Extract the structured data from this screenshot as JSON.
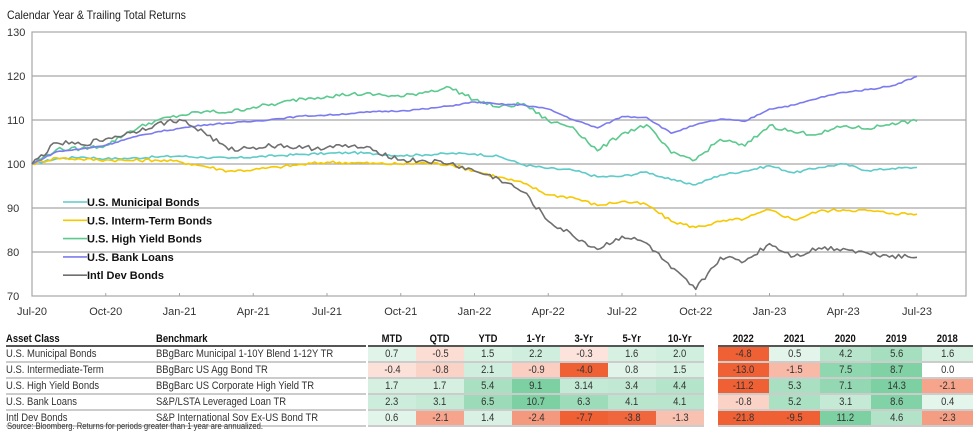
{
  "title": "Calendar Year & Trailing Total Returns",
  "chart_data": {
    "type": "line",
    "title": "Calendar Year & Trailing Total Returns",
    "xlabel": "",
    "ylabel": "",
    "ylim": [
      70,
      130
    ],
    "yticks": [
      70,
      80,
      90,
      100,
      110,
      120,
      130
    ],
    "grid": true,
    "legend_position": "left-lower",
    "x_ticks": [
      "Jul-20",
      "Oct-20",
      "Jan-21",
      "Apr-21",
      "Jul-21",
      "Oct-21",
      "Jan-22",
      "Apr-22",
      "Jul-22",
      "Oct-22",
      "Jan-23",
      "Apr-23",
      "Jul-23"
    ],
    "x": [
      "Jul-20",
      "Aug-20",
      "Sep-20",
      "Oct-20",
      "Nov-20",
      "Dec-20",
      "Jan-21",
      "Feb-21",
      "Mar-21",
      "Apr-21",
      "May-21",
      "Jun-21",
      "Jul-21",
      "Aug-21",
      "Sep-21",
      "Oct-21",
      "Nov-21",
      "Dec-21",
      "Jan-22",
      "Feb-22",
      "Mar-22",
      "Apr-22",
      "May-22",
      "Jun-22",
      "Jul-22",
      "Aug-22",
      "Sep-22",
      "Oct-22",
      "Nov-22",
      "Dec-22",
      "Jan-23",
      "Feb-23",
      "Mar-23",
      "Apr-23",
      "May-23",
      "Jun-23",
      "Jul-23"
    ],
    "series": [
      {
        "name": "U.S.  Municipal Bonds",
        "color": "#5ecbc8",
        "values": [
          100,
          101.2,
          101.6,
          101.2,
          101.3,
          101.6,
          101.8,
          101.5,
          101.3,
          101.6,
          101.9,
          102.2,
          102.4,
          102.6,
          102.3,
          101.9,
          102.1,
          102.4,
          102.3,
          101.7,
          99.8,
          99.0,
          98.6,
          97.1,
          97.2,
          98.2,
          96.4,
          95.3,
          97.5,
          98.4,
          99.6,
          98.0,
          99.2,
          100.0,
          98.5,
          99.0,
          99.2
        ]
      },
      {
        "name": "U.S. Interm-Term Bonds",
        "color": "#f5c800",
        "values": [
          100,
          101.4,
          101.1,
          100.9,
          100.8,
          100.9,
          100.5,
          99.5,
          98.4,
          98.7,
          99.3,
          99.9,
          100.4,
          100.3,
          100.1,
          100.0,
          100.2,
          99.9,
          98.4,
          97.0,
          95.6,
          93.0,
          92.4,
          90.6,
          91.5,
          90.8,
          87.0,
          85.6,
          86.9,
          87.6,
          89.6,
          87.3,
          89.3,
          89.6,
          89.4,
          88.8,
          88.6
        ]
      },
      {
        "name": "U.S. High Yield Bonds",
        "color": "#5cc98e",
        "values": [
          100,
          103.3,
          103.5,
          104.2,
          107.5,
          109.8,
          111.0,
          111.9,
          111.8,
          112.9,
          113.7,
          114.9,
          115.4,
          115.9,
          115.8,
          115.3,
          116.4,
          117.4,
          114.6,
          112.9,
          113.7,
          109.8,
          108.4,
          103.0,
          106.9,
          108.9,
          102.5,
          101.0,
          105.6,
          104.1,
          108.8,
          107.2,
          106.8,
          108.6,
          108.0,
          109.3,
          109.7
        ]
      },
      {
        "name": "U.S. Bank Loans",
        "color": "#7b7bef",
        "values": [
          100,
          102.8,
          103.4,
          104.3,
          105.9,
          107.2,
          108.1,
          108.9,
          109.3,
          109.7,
          110.3,
          110.9,
          111.1,
          111.5,
          111.9,
          112.1,
          112.5,
          113.2,
          114.1,
          113.6,
          113.4,
          112.5,
          110.1,
          108.2,
          110.8,
          110.6,
          107.0,
          108.9,
          110.2,
          109.7,
          112.5,
          113.4,
          115.0,
          116.3,
          116.9,
          117.8,
          119.9
        ]
      },
      {
        "name": "Intl Dev Bonds",
        "color": "#6f6f6f",
        "values": [
          100,
          104.8,
          104.4,
          105.7,
          107.1,
          108.9,
          110.1,
          107.2,
          103.2,
          103.8,
          104.3,
          103.6,
          103.8,
          104.1,
          103.0,
          100.9,
          100.7,
          100.1,
          98.4,
          96.6,
          93.6,
          87.0,
          83.7,
          80.6,
          83.6,
          82.0,
          76.3,
          71.5,
          78.8,
          77.9,
          81.9,
          79.0,
          80.9,
          80.8,
          79.7,
          79.2,
          78.8
        ]
      }
    ]
  },
  "table": {
    "left_headers": [
      "Asset Class",
      "Benchmark"
    ],
    "trailing_headers": [
      "MTD",
      "QTD",
      "YTD",
      "1-Yr",
      "3-Yr",
      "5-Yr",
      "10-Yr"
    ],
    "calendar_headers": [
      "2022",
      "2021",
      "2020",
      "2019",
      "2018"
    ],
    "rows": [
      {
        "asset_class": "U.S. Municipal Bonds",
        "benchmark": "BBgBarc Municipal 1-10Y Blend 1-12Y TR",
        "trailing": [
          "0.7",
          "-0.5",
          "1.5",
          "2.2",
          "-0.3",
          "1.6",
          "2.0"
        ],
        "calendar": [
          "-4.8",
          "0.5",
          "4.2",
          "5.6",
          "1.6"
        ]
      },
      {
        "asset_class": "U.S. Intermediate-Term",
        "benchmark": "BBgBarc US Agg Bond TR",
        "trailing": [
          "-0.4",
          "-0.8",
          "2.1",
          "-0.9",
          "-4.0",
          "0.8",
          "1.5"
        ],
        "calendar": [
          "-13.0",
          "-1.5",
          "7.5",
          "8.7",
          "0.0"
        ]
      },
      {
        "asset_class": "U.S. High Yield Bonds",
        "benchmark": "BBgBarc US Corporate High Yield TR",
        "trailing": [
          "1.7",
          "1.7",
          "5.4",
          "9.1",
          "3.14",
          "3.4",
          "4.4"
        ],
        "calendar": [
          "-11.2",
          "5.3",
          "7.1",
          "14.3",
          "-2.1"
        ]
      },
      {
        "asset_class": "U.S. Bank Loans",
        "benchmark": "S&P/LSTA Leveraged Loan TR",
        "trailing": [
          "2.3",
          "3.1",
          "6.5",
          "10.7",
          "6.3",
          "4.1",
          "4.1"
        ],
        "calendar": [
          "-0.8",
          "5.2",
          "3.1",
          "8.6",
          "0.4"
        ]
      },
      {
        "asset_class": "Intl Dev Bonds",
        "benchmark": "S&P International Sov Ex-US Bond TR",
        "trailing": [
          "0.6",
          "-2.1",
          "1.4",
          "-2.4",
          "-7.7",
          "-3.8",
          "-1.3"
        ],
        "calendar": [
          "-21.8",
          "-9.5",
          "11.2",
          "4.6",
          "-2.3"
        ]
      }
    ]
  },
  "heat_colors": {
    "positive_strong": "#7dd0a4",
    "neutral": "#ffffff",
    "negative_strong": "#ef6035"
  },
  "source_note": "Source: Bloomberg. Returns for periods greater than 1 year are annualized."
}
